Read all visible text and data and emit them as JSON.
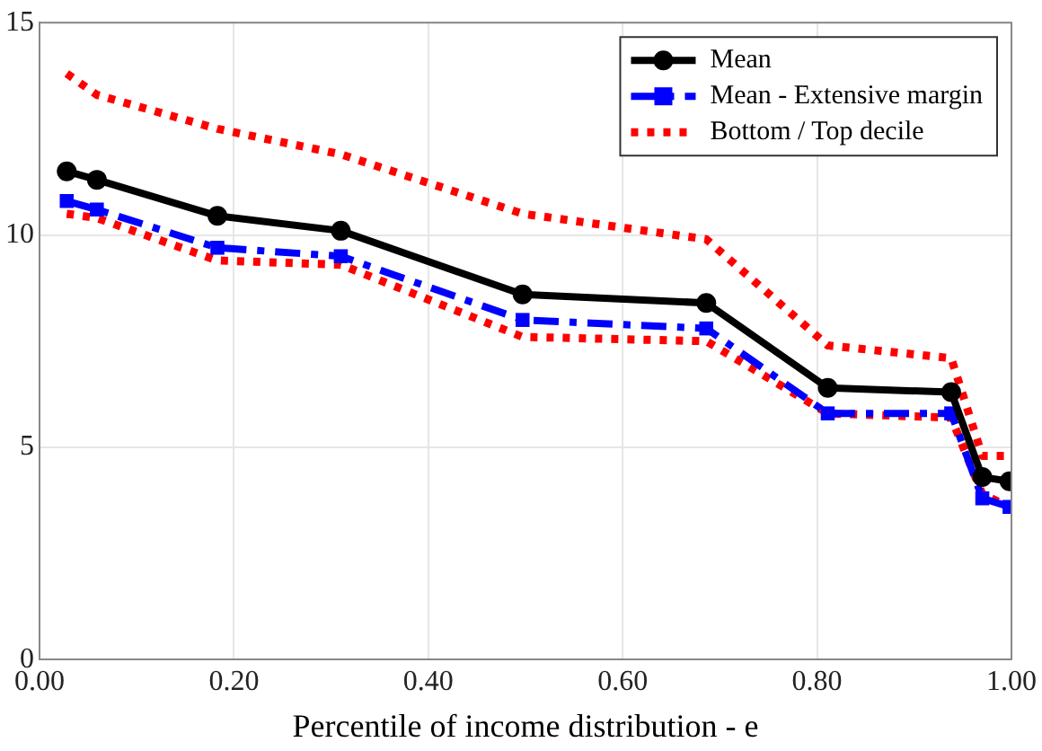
{
  "chart_data": {
    "type": "line",
    "xlabel": "Percentile of income distribution - e",
    "xlim": [
      0,
      1
    ],
    "xticks": [
      {
        "value": 0,
        "label": "0.00"
      },
      {
        "value": 0.2,
        "label": "0.20"
      },
      {
        "value": 0.4,
        "label": "0.40"
      },
      {
        "value": 0.6,
        "label": "0.60"
      },
      {
        "value": 0.8,
        "label": "0.80"
      },
      {
        "value": 1,
        "label": "1.00"
      }
    ],
    "ylim": [
      0,
      15
    ],
    "yticks": [
      0,
      5,
      10,
      15
    ],
    "grid": true,
    "legend": "top right",
    "x": [
      0.028,
      0.059,
      0.183,
      0.31,
      0.497,
      0.686,
      0.811,
      0.938,
      0.97,
      0.998
    ],
    "series": [
      {
        "name": "Bottom / Top decile",
        "color": "#ff0000",
        "line_style": "dotted",
        "marker": "none",
        "values": [
          13.8,
          13.3,
          12.5,
          11.9,
          10.5,
          9.9,
          7.4,
          7.1,
          4.8,
          4.8
        ]
      },
      {
        "color": "#ff0000",
        "line_style": "dotted",
        "marker": "none",
        "values": [
          10.5,
          10.4,
          9.4,
          9.3,
          7.6,
          7.5,
          5.8,
          5.7,
          3.9,
          3.6
        ]
      },
      {
        "name": "Mean - Extensive margin",
        "color": "#0000ff",
        "line_style": "dashed",
        "marker": "square",
        "values": [
          10.8,
          10.6,
          9.7,
          9.5,
          8.0,
          7.8,
          5.8,
          5.8,
          3.8,
          3.6
        ]
      },
      {
        "name": "Mean",
        "color": "#000000",
        "line_style": "solid",
        "marker": "circle",
        "values": [
          11.5,
          11.3,
          10.45,
          10.1,
          8.6,
          8.4,
          6.4,
          6.3,
          4.3,
          4.2
        ]
      }
    ]
  }
}
